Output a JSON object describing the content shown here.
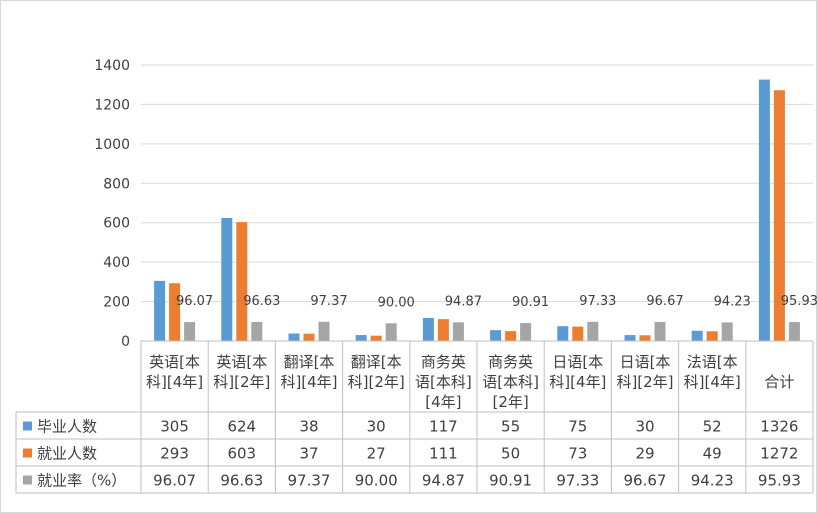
{
  "chart_data": {
    "type": "bar",
    "categories": [
      [
        "英语[本",
        "科][4年]"
      ],
      [
        "英语[本",
        "科][2年]"
      ],
      [
        "翻译[本",
        "科][4年]"
      ],
      [
        "翻译[本",
        "科][2年]"
      ],
      [
        "商务英",
        "语[本科]",
        "[4年]"
      ],
      [
        "商务英",
        "语[本科]",
        "[2年]"
      ],
      [
        "日语[本",
        "科][4年]"
      ],
      [
        "日语[本",
        "科][2年]"
      ],
      [
        "法语[本",
        "科][4年]"
      ],
      [
        "合计"
      ]
    ],
    "series": [
      {
        "name": "毕业人数",
        "color": "#5b9bd5",
        "values": [
          305,
          624,
          38,
          30,
          117,
          55,
          75,
          30,
          52,
          1326
        ],
        "display": [
          "305",
          "624",
          "38",
          "30",
          "117",
          "55",
          "75",
          "30",
          "52",
          "1326"
        ]
      },
      {
        "name": "就业人数",
        "color": "#ed7d31",
        "values": [
          293,
          603,
          37,
          27,
          111,
          50,
          73,
          29,
          49,
          1272
        ],
        "display": [
          "293",
          "603",
          "37",
          "27",
          "111",
          "50",
          "73",
          "29",
          "49",
          "1272"
        ]
      },
      {
        "name": "就业率（%）",
        "color": "#a5a5a5",
        "values": [
          96.07,
          96.63,
          97.37,
          90.0,
          94.87,
          90.91,
          97.33,
          96.67,
          94.23,
          95.93
        ],
        "display": [
          "96.07",
          "96.63",
          "97.37",
          "90.00",
          "94.87",
          "90.91",
          "97.33",
          "96.67",
          "94.23",
          "95.93"
        ],
        "data_labels": true
      }
    ],
    "ylim": [
      0,
      1400
    ],
    "yticks": [
      "0",
      "200",
      "400",
      "600",
      "800",
      "1000",
      "1200",
      "1400"
    ],
    "grid": true,
    "legend": "data-table"
  }
}
